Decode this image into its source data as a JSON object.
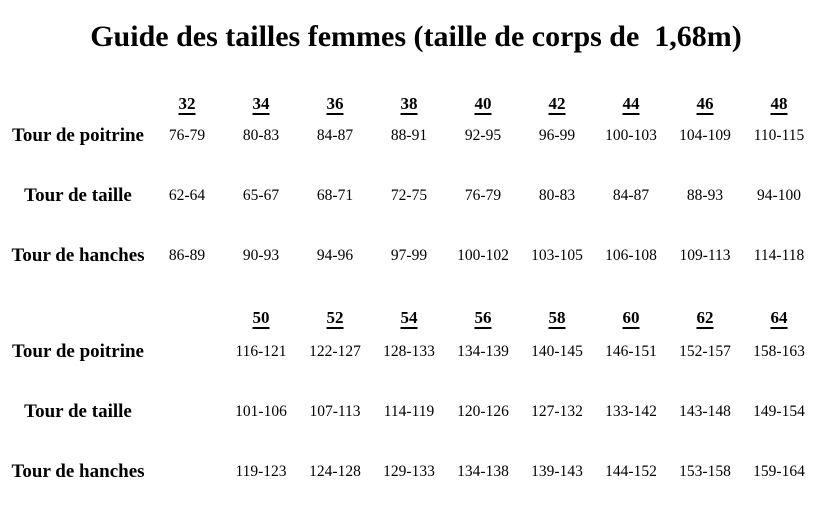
{
  "title": "Guide des tailles femmes (taille de corps de  1,68m)",
  "tables": [
    {
      "sizes": [
        "32",
        "34",
        "36",
        "38",
        "40",
        "42",
        "44",
        "46",
        "48"
      ],
      "rows": [
        {
          "label": "Tour de poitrine",
          "values": [
            "76-79",
            "80-83",
            "84-87",
            "88-91",
            "92-95",
            "96-99",
            "100-103",
            "104-109",
            "110-115"
          ]
        },
        {
          "label": "Tour de taille",
          "values": [
            "62-64",
            "65-67",
            "68-71",
            "72-75",
            "76-79",
            "80-83",
            "84-87",
            "88-93",
            "94-100"
          ]
        },
        {
          "label": "Tour de hanches",
          "values": [
            "86-89",
            "90-93",
            "94-96",
            "97-99",
            "100-102",
            "103-105",
            "106-108",
            "109-113",
            "114-118"
          ]
        }
      ]
    },
    {
      "sizes": [
        "50",
        "52",
        "54",
        "56",
        "58",
        "60",
        "62",
        "64"
      ],
      "rows": [
        {
          "label": "Tour de poitrine",
          "values": [
            "116-121",
            "122-127",
            "128-133",
            "134-139",
            "140-145",
            "146-151",
            "152-157",
            "158-163"
          ]
        },
        {
          "label": "Tour de taille",
          "values": [
            "101-106",
            "107-113",
            "114-119",
            "120-126",
            "127-132",
            "133-142",
            "143-148",
            "149-154"
          ]
        },
        {
          "label": "Tour de hanches",
          "values": [
            "119-123",
            "124-128",
            "129-133",
            "134-138",
            "139-143",
            "144-152",
            "153-158",
            "159-164"
          ]
        }
      ]
    }
  ]
}
